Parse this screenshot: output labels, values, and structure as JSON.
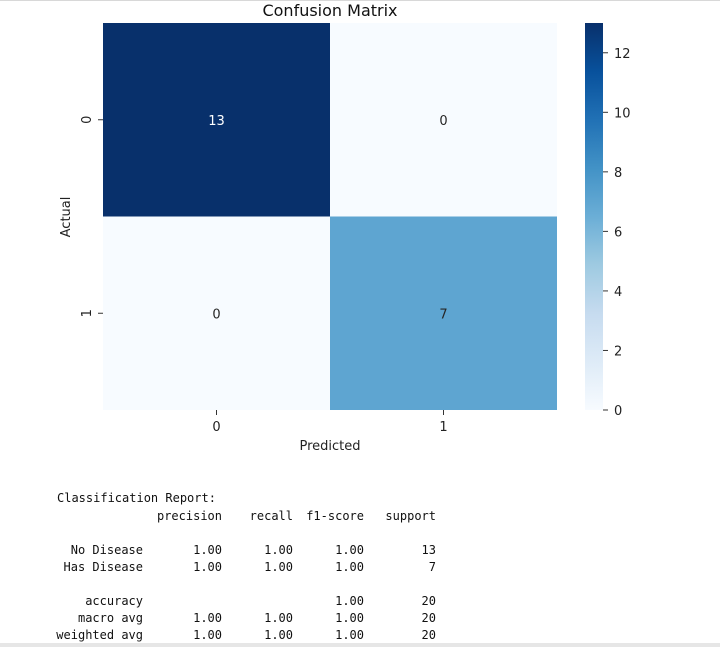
{
  "chart_data": {
    "type": "heatmap",
    "title": "Confusion Matrix",
    "xlabel": "Predicted",
    "ylabel": "Actual",
    "x_categories": [
      "0",
      "1"
    ],
    "y_categories": [
      "0",
      "1"
    ],
    "values": [
      [
        13,
        0
      ],
      [
        0,
        7
      ]
    ],
    "colorbar": {
      "min": 0,
      "max": 13,
      "ticks": [
        0,
        2,
        4,
        6,
        8,
        10,
        12
      ],
      "colormap": "Blues"
    },
    "grid": false
  },
  "report": {
    "title": "Classification Report:",
    "headers": [
      "precision",
      "recall",
      "f1-score",
      "support"
    ],
    "rows": [
      {
        "label": "No Disease",
        "cells": [
          "1.00",
          "1.00",
          "1.00",
          "13"
        ]
      },
      {
        "label": "Has Disease",
        "cells": [
          "1.00",
          "1.00",
          "1.00",
          "7"
        ]
      },
      {
        "label": "accuracy",
        "cells": [
          "",
          "",
          "1.00",
          "20"
        ]
      },
      {
        "label": "macro avg",
        "cells": [
          "1.00",
          "1.00",
          "1.00",
          "20"
        ]
      },
      {
        "label": "weighted avg",
        "cells": [
          "1.00",
          "1.00",
          "1.00",
          "20"
        ]
      }
    ]
  }
}
